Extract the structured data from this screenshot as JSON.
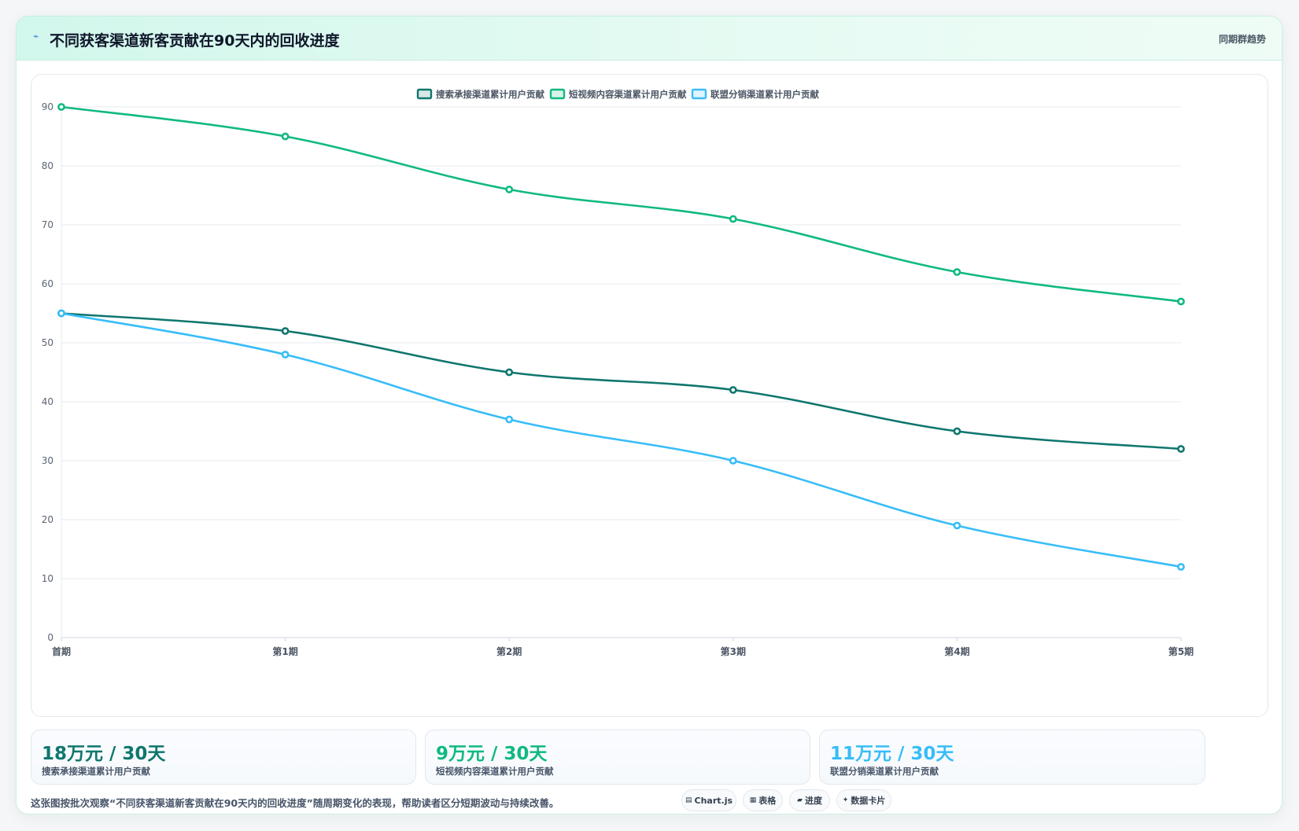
{
  "header": {
    "icon": "trend-line-icon",
    "title": "不同获客渠道新客贡献在90天内的回收进度",
    "tag": "同期群趋势"
  },
  "chart_data": {
    "type": "line",
    "categories": [
      "首期",
      "第1期",
      "第2期",
      "第3期",
      "第4期",
      "第5期"
    ],
    "series": [
      {
        "name": "搜索承接渠道累计用户贡献",
        "color": "#0f766e",
        "values": [
          55,
          52,
          45,
          42,
          35,
          32
        ]
      },
      {
        "name": "短视频内容渠道累计用户贡献",
        "color": "#10b981",
        "values": [
          90,
          85,
          76,
          71,
          62,
          57
        ]
      },
      {
        "name": "联盟分销渠道累计用户贡献",
        "color": "#38bdf8",
        "values": [
          55,
          48,
          37,
          30,
          19,
          12
        ]
      }
    ],
    "ylim": [
      0,
      90
    ],
    "yticks": [
      0,
      10,
      20,
      30,
      40,
      50,
      60,
      70,
      80,
      90
    ],
    "grid": true,
    "legend": "top-center"
  },
  "stats": [
    {
      "value": "18万元 / 30天",
      "label": "搜索承接渠道累计用户贡献",
      "color": "#0f766e"
    },
    {
      "value": "9万元 / 30天",
      "label": "短视频内容渠道累计用户贡献",
      "color": "#10b981"
    },
    {
      "value": "11万元 / 30天",
      "label": "联盟分销渠道累计用户贡献",
      "color": "#38bdf8"
    }
  ],
  "footnote": "这张图按批次观察“不同获客渠道新客贡献在90天内的回收进度”随周期变化的表现，帮助读者区分短期波动与持续改善。",
  "chips": [
    {
      "icon": "chart-icon",
      "label": "Chart.js"
    },
    {
      "icon": "table-icon",
      "label": "表格"
    },
    {
      "icon": "progress-icon",
      "label": "进度"
    },
    {
      "icon": "sparkle-icon",
      "label": "数据卡片"
    }
  ]
}
